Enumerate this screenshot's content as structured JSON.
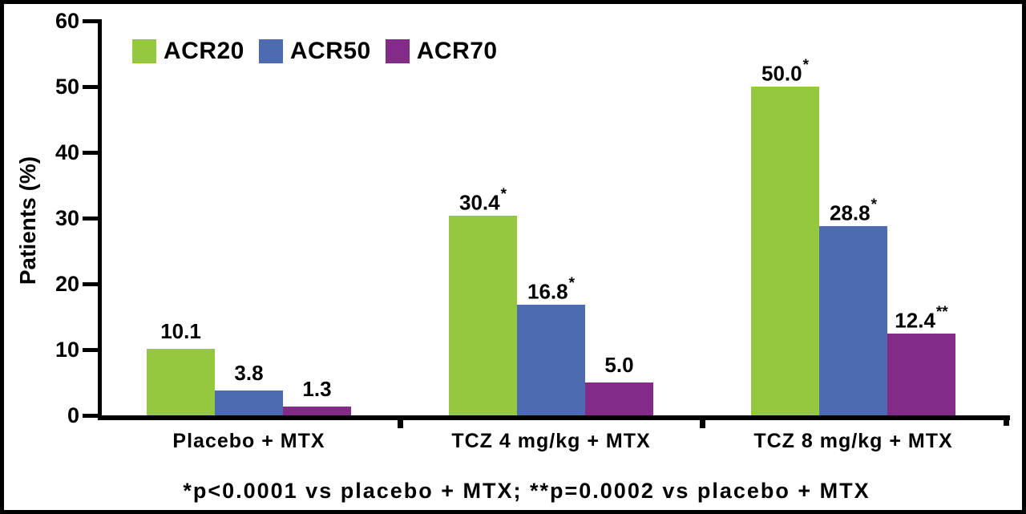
{
  "frame": {
    "background": "#FFFFFF",
    "border_color": "#000000"
  },
  "chart_data": {
    "type": "bar",
    "title": "",
    "ylabel": "Patients (%)",
    "xlabel": "",
    "ylim": [
      0,
      60
    ],
    "yticks": [
      0,
      10,
      20,
      30,
      40,
      50,
      60
    ],
    "grid": false,
    "legend_position": "top-left-inside",
    "categories": [
      "Placebo + MTX",
      "TCZ 4 mg/kg + MTX",
      "TCZ 8 mg/kg + MTX"
    ],
    "series": [
      {
        "name": "ACR20",
        "color": "#95C83E",
        "values": [
          10.1,
          30.4,
          50.0
        ],
        "labels": [
          "10.1",
          "30.4",
          "50.0"
        ],
        "sig": [
          "",
          "*",
          "*"
        ]
      },
      {
        "name": "ACR50",
        "color": "#4C6BB0",
        "values": [
          3.8,
          16.8,
          28.8
        ],
        "labels": [
          "3.8",
          "16.8",
          "28.8"
        ],
        "sig": [
          "",
          "*",
          "*"
        ]
      },
      {
        "name": "ACR70",
        "color": "#822C87",
        "values": [
          1.3,
          5.0,
          12.4
        ],
        "labels": [
          "1.3",
          "5.0",
          "12.4"
        ],
        "sig": [
          "",
          "",
          "**"
        ]
      }
    ],
    "footnote": "*p<0.0001 vs placebo + MTX; **p=0.0002 vs placebo + MTX"
  }
}
